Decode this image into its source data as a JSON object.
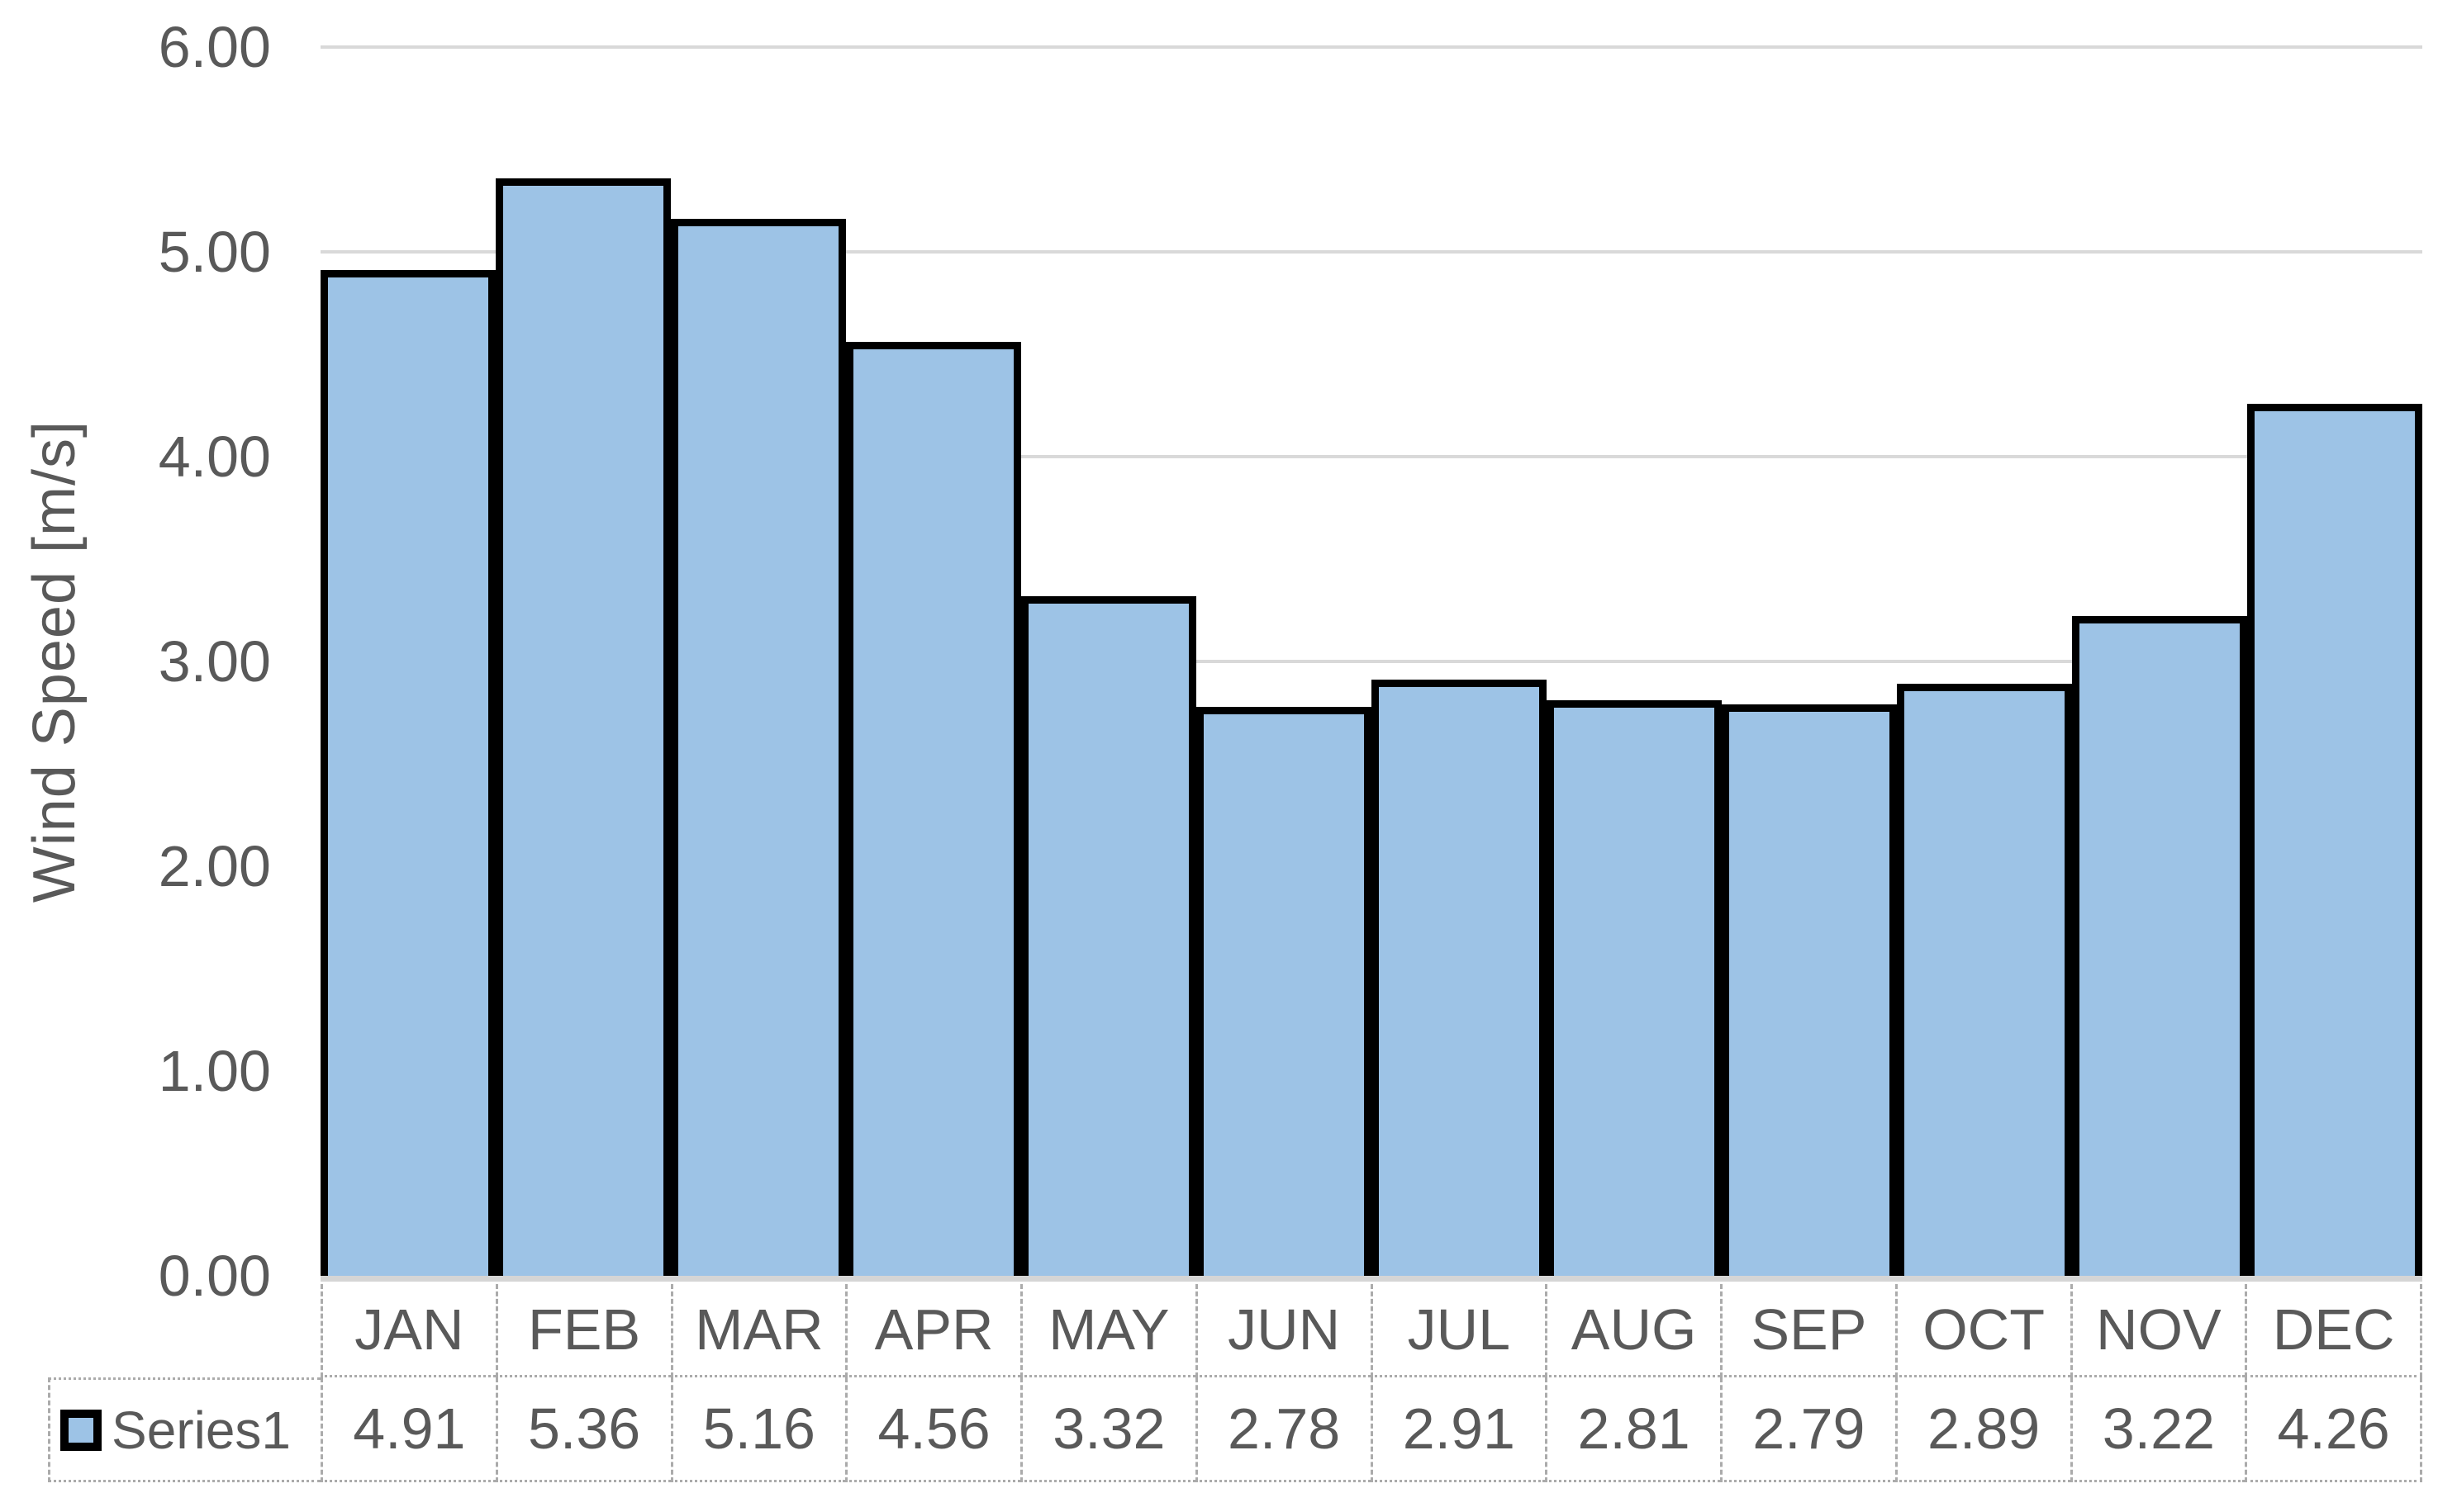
{
  "chart_data": {
    "type": "bar",
    "title": "",
    "xlabel": "",
    "ylabel": "Wind Speed [m/s]",
    "categories": [
      "JAN",
      "FEB",
      "MAR",
      "APR",
      "MAY",
      "JUN",
      "JUL",
      "AUG",
      "SEP",
      "OCT",
      "NOV",
      "DEC"
    ],
    "series": [
      {
        "name": "Series1",
        "values": [
          4.91,
          5.36,
          5.16,
          4.56,
          3.32,
          2.78,
          2.91,
          2.81,
          2.79,
          2.89,
          3.22,
          4.26
        ]
      }
    ],
    "ylim": [
      0,
      6
    ],
    "ytick_step": 1,
    "ytick_decimals": 2,
    "value_decimals": 2,
    "grid": true,
    "gap_width_percent": 0,
    "legend_position": "data-table-left",
    "colors": {
      "bar_fill": "#9DC3E6",
      "bar_border": "#000000",
      "gridline": "#D9D9D9",
      "axis_line": "#D5D5D5",
      "text": "#595959",
      "table_border": "#ABABAB"
    }
  }
}
